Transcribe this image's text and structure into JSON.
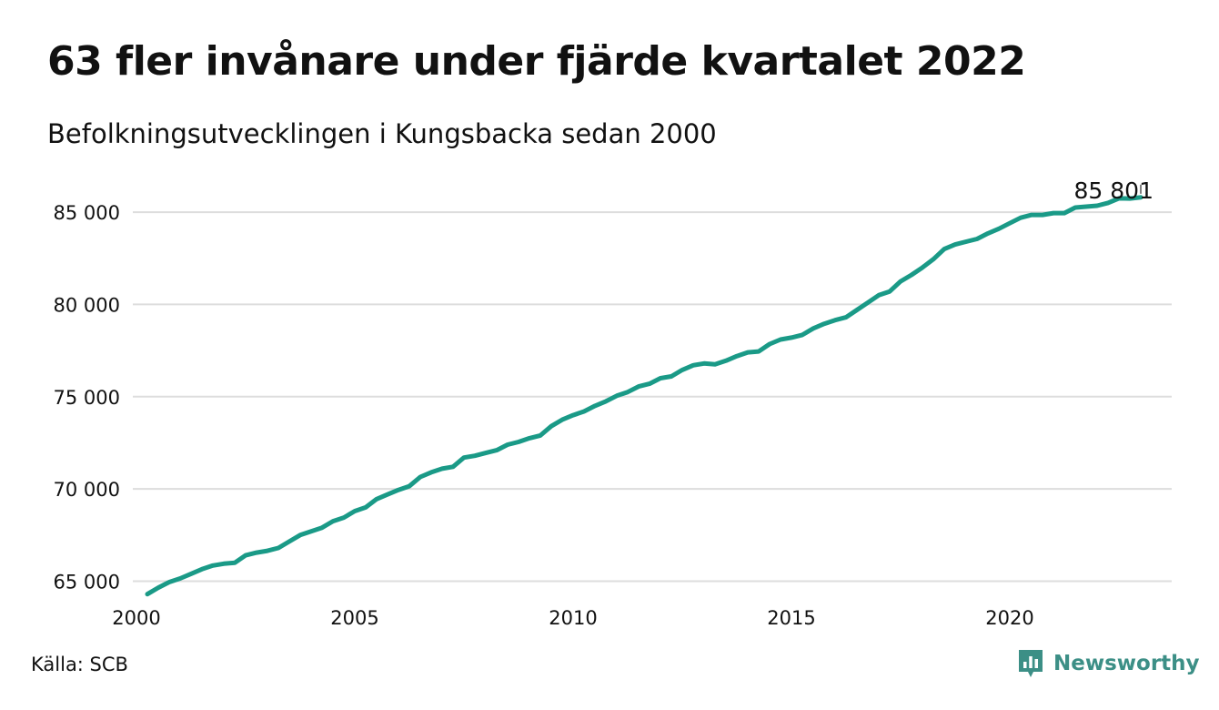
{
  "header": {
    "title": "63 fler invånare under fjärde kvartalet 2022",
    "subtitle": "Befolkningsutvecklingen i Kungsbacka sedan 2000"
  },
  "footer": {
    "source": "Källa: SCB",
    "brand": "Newsworthy"
  },
  "colors": {
    "line": "#1a9a87",
    "grid": "#dddddd",
    "brand": "#3c8f86"
  },
  "chart_data": {
    "type": "line",
    "title": "63 fler invånare under fjärde kvartalet 2022",
    "subtitle": "Befolkningsutvecklingen i Kungsbacka sedan 2000",
    "xlabel": "",
    "ylabel": "",
    "xlim": [
      2000,
      2023.5
    ],
    "ylim": [
      64000,
      87000
    ],
    "x_ticks": [
      2000,
      2005,
      2010,
      2015,
      2020
    ],
    "x_tick_labels": [
      "2000",
      "2005",
      "2010",
      "2015",
      "2020"
    ],
    "y_ticks": [
      65000,
      70000,
      75000,
      80000,
      85000
    ],
    "y_tick_labels": [
      "65 000",
      "70 000",
      "75 000",
      "80 000",
      "85 000"
    ],
    "grid": "horizontal",
    "end_label": "85 801",
    "series": [
      {
        "x": [
          2000.25,
          2000.5,
          2000.75,
          2001,
          2001.25,
          2001.5,
          2001.75,
          2002,
          2002.25,
          2002.5,
          2002.75,
          2003,
          2003.25,
          2003.5,
          2003.75,
          2004,
          2004.25,
          2004.5,
          2004.75,
          2005,
          2005.25,
          2005.5,
          2005.75,
          2006,
          2006.25,
          2006.5,
          2006.75,
          2007,
          2007.25,
          2007.5,
          2007.75,
          2008,
          2008.25,
          2008.5,
          2008.75,
          2009,
          2009.25,
          2009.5,
          2009.75,
          2010,
          2010.25,
          2010.5,
          2010.75,
          2011,
          2011.25,
          2011.5,
          2011.75,
          2012,
          2012.25,
          2012.5,
          2012.75,
          2013,
          2013.25,
          2013.5,
          2013.75,
          2014,
          2014.25,
          2014.5,
          2014.75,
          2015,
          2015.25,
          2015.5,
          2015.75,
          2016,
          2016.25,
          2016.5,
          2016.75,
          2017,
          2017.25,
          2017.5,
          2017.75,
          2018,
          2018.25,
          2018.5,
          2018.75,
          2019,
          2019.25,
          2019.5,
          2019.75,
          2020,
          2020.25,
          2020.5,
          2020.75,
          2021,
          2021.25,
          2021.5,
          2021.75,
          2022,
          2022.25,
          2022.5,
          2022.75,
          2023
        ],
        "values": [
          64300,
          64650,
          64950,
          65150,
          65400,
          65650,
          65850,
          65950,
          66000,
          66400,
          66550,
          66650,
          66800,
          67150,
          67500,
          67700,
          67900,
          68250,
          68450,
          68800,
          69000,
          69450,
          69700,
          69950,
          70150,
          70650,
          70900,
          71100,
          71200,
          71700,
          71800,
          71950,
          72100,
          72400,
          72550,
          72750,
          72900,
          73400,
          73750,
          74000,
          74200,
          74500,
          74750,
          75050,
          75250,
          75550,
          75700,
          76000,
          76100,
          76450,
          76700,
          76800,
          76750,
          76950,
          77200,
          77400,
          77450,
          77850,
          78100,
          78200,
          78350,
          78700,
          78950,
          79150,
          79300,
          79700,
          80100,
          80500,
          80700,
          81250,
          81600,
          82000,
          82450,
          83000,
          83250,
          83400,
          83550,
          83850,
          84100,
          84400,
          84700,
          84850,
          84850,
          84950,
          84950,
          85250,
          85300,
          85350,
          85500,
          85750,
          85738,
          85801
        ]
      }
    ]
  }
}
